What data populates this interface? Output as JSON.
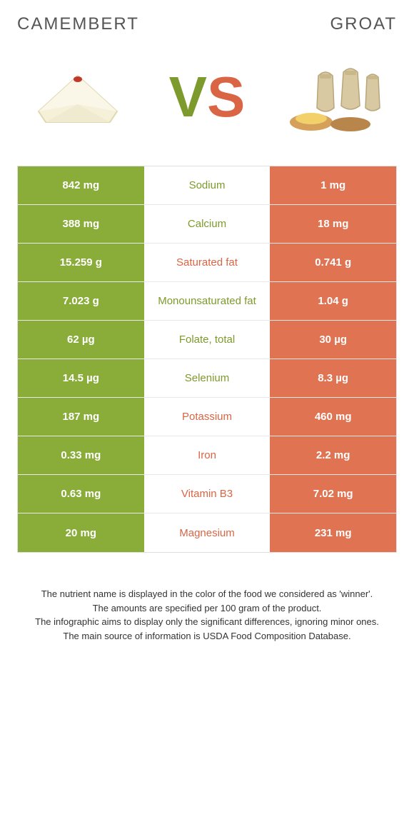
{
  "colors": {
    "left_bg": "#8aad3a",
    "right_bg": "#e07352",
    "left_text": "#7d9a2d",
    "right_text": "#d96545",
    "title_text": "#555555",
    "footer_text": "#333333",
    "row_border": "#e8e8e8",
    "table_border": "#e0e0e0"
  },
  "header": {
    "left_title": "CAMEMBERT",
    "right_title": "GROAT",
    "vs_v": "V",
    "vs_s": "S"
  },
  "rows": [
    {
      "left": "842 mg",
      "label": "Sodium",
      "right": "1 mg",
      "winner": "left"
    },
    {
      "left": "388 mg",
      "label": "Calcium",
      "right": "18 mg",
      "winner": "left"
    },
    {
      "left": "15.259 g",
      "label": "Saturated fat",
      "right": "0.741 g",
      "winner": "right"
    },
    {
      "left": "7.023 g",
      "label": "Monounsaturated fat",
      "right": "1.04 g",
      "winner": "left"
    },
    {
      "left": "62 µg",
      "label": "Folate, total",
      "right": "30 µg",
      "winner": "left"
    },
    {
      "left": "14.5 µg",
      "label": "Selenium",
      "right": "8.3 µg",
      "winner": "left"
    },
    {
      "left": "187 mg",
      "label": "Potassium",
      "right": "460 mg",
      "winner": "right"
    },
    {
      "left": "0.33 mg",
      "label": "Iron",
      "right": "2.2 mg",
      "winner": "right"
    },
    {
      "left": "0.63 mg",
      "label": "Vitamin B3",
      "right": "7.02 mg",
      "winner": "right"
    },
    {
      "left": "20 mg",
      "label": "Magnesium",
      "right": "231 mg",
      "winner": "right"
    }
  ],
  "footer": {
    "line1": "The nutrient name is displayed in the color of the food we considered as 'winner'.",
    "line2": "The amounts are specified per 100 gram of the product.",
    "line3": "The infographic aims to display only the significant differences, ignoring minor ones.",
    "line4": "The main source of information is USDA Food Composition Database."
  }
}
